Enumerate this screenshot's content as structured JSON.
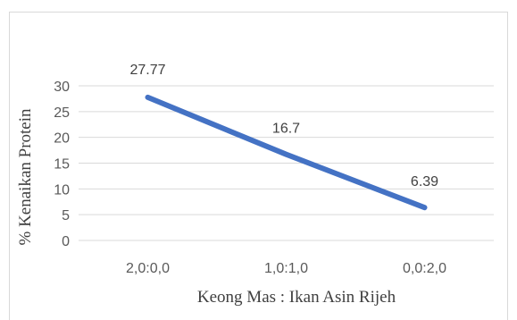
{
  "chart_data": {
    "type": "line",
    "title": "",
    "xlabel": "Keong Mas : Ikan Asin Rijeh",
    "ylabel": "% Kenaikan Protein",
    "categories": [
      "2,0:0,0",
      "1,0:1,0",
      "0,0:2,0"
    ],
    "series": [
      {
        "values": [
          27.77,
          16.7,
          6.39
        ],
        "data_labels": [
          "27.77",
          "16.7",
          "6.39"
        ]
      }
    ],
    "ylim": [
      0,
      30
    ],
    "yticks": [
      0,
      5,
      10,
      15,
      20,
      25,
      30
    ],
    "grid": true,
    "legend": "none",
    "line_color": "#4472c4",
    "grid_color": "#d9d9d9"
  }
}
